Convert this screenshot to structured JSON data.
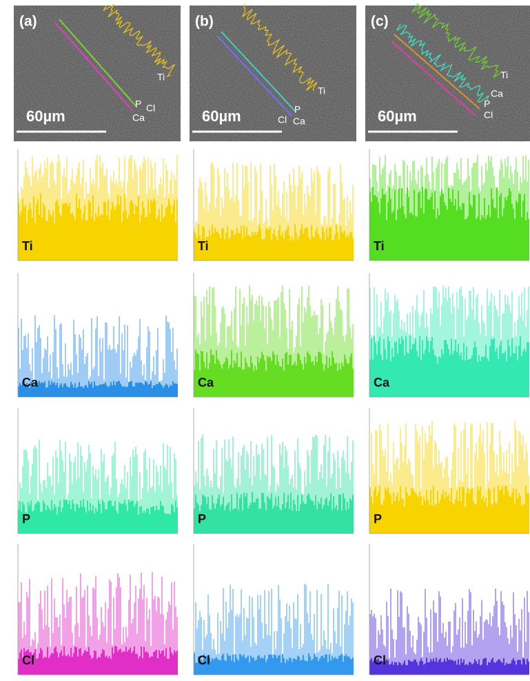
{
  "panels": [
    {
      "label": "(a)",
      "scale_bar": "60µm",
      "line_labels": [
        "Ti",
        "P",
        "Cl",
        "Ca"
      ],
      "profiles": [
        {
          "element": "Ti",
          "color": "#f7d300"
        },
        {
          "element": "Ca",
          "color": "#2b8fe6"
        },
        {
          "element": "P",
          "color": "#2fe8a6"
        },
        {
          "element": "Cl",
          "color": "#e02ec6"
        }
      ]
    },
    {
      "label": "(b)",
      "scale_bar": "60µm",
      "line_labels": [
        "Ti",
        "P",
        "Cl",
        "Ca"
      ],
      "profiles": [
        {
          "element": "Ti",
          "color": "#f7d300"
        },
        {
          "element": "Ca",
          "color": "#66dd22"
        },
        {
          "element": "P",
          "color": "#33e2a2"
        },
        {
          "element": "Cl",
          "color": "#3399ee"
        }
      ]
    },
    {
      "label": "(c)",
      "scale_bar": "60µm",
      "line_labels": [
        "Ti",
        "Ca",
        "P",
        "Cl"
      ],
      "profiles": [
        {
          "element": "Ti",
          "color": "#55dd22"
        },
        {
          "element": "Ca",
          "color": "#33e8b2"
        },
        {
          "element": "P",
          "color": "#f7d300"
        },
        {
          "element": "Cl",
          "color": "#5533dd"
        }
      ]
    }
  ]
}
